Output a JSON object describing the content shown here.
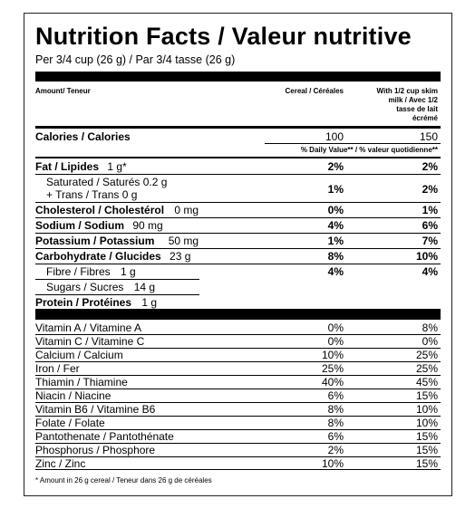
{
  "title": "Nutrition Facts / Valeur nutritive",
  "serving": "Per 3/4 cup (26 g)  / Par 3/4 tasse (26 g)",
  "header": {
    "amount": "Amount/ Teneur",
    "col1": "Cereal / Céréales",
    "col2_line1": "With 1/2 cup skim",
    "col2_line2": "milk  / Avec 1/2",
    "col2_line3": "tasse de lait",
    "col2_line4": "écrémé"
  },
  "calories": {
    "label": "Calories / Calories",
    "col1": "100",
    "col2": "150"
  },
  "daily_value_header": "% Daily Value** / % valeur quotidienne**",
  "nutrients": {
    "fat": {
      "label": "Fat / Lipides",
      "amount": "1 g*",
      "col1": "2%",
      "col2": "2%"
    },
    "saturated": {
      "label": "Saturated / Saturés",
      "amount": "0.2 g",
      "col1": "1%",
      "col2": "2%"
    },
    "trans": {
      "label": "+ Trans / Trans",
      "amount": "0 g"
    },
    "cholesterol": {
      "label": "Cholesterol / Cholestérol",
      "amount": "0 mg",
      "col1": "0%",
      "col2": "1%"
    },
    "sodium": {
      "label": "Sodium / Sodium",
      "amount": "90 mg",
      "col1": "4%",
      "col2": "6%"
    },
    "potassium": {
      "label": "Potassium / Potassium",
      "amount": "50 mg",
      "col1": "1%",
      "col2": "7%"
    },
    "carbohydrate": {
      "label": "Carbohydrate / Glucides",
      "amount": "23 g",
      "col1": "8%",
      "col2": "10%"
    },
    "fibre": {
      "label": "Fibre / Fibres",
      "amount": "1 g",
      "col1": "4%",
      "col2": "4%"
    },
    "sugars": {
      "label": "Sugars / Sucres",
      "amount": "14 g"
    },
    "protein": {
      "label": "Protein / Protéines",
      "amount": "1 g"
    }
  },
  "vitamins": [
    {
      "label": "Vitamin A / Vitamine A",
      "col1": "0%",
      "col2": "8%"
    },
    {
      "label": "Vitamin C / Vitamine C",
      "col1": "0%",
      "col2": "0%"
    },
    {
      "label": "Calcium / Calcium",
      "col1": "10%",
      "col2": "25%"
    },
    {
      "label": "Iron / Fer",
      "col1": "25%",
      "col2": "25%"
    },
    {
      "label": "Thiamin / Thiamine",
      "col1": "40%",
      "col2": "45%"
    },
    {
      "label": "Niacin / Niacine",
      "col1": "6%",
      "col2": "15%"
    },
    {
      "label": "Vitamin B6 / Vitamine B6",
      "col1": "8%",
      "col2": "10%"
    },
    {
      "label": "Folate / Folate",
      "col1": "8%",
      "col2": "10%"
    },
    {
      "label": "Pantothenate / Pantothénate",
      "col1": "6%",
      "col2": "15%"
    },
    {
      "label": "Phosphorus / Phosphore",
      "col1": "2%",
      "col2": "15%"
    },
    {
      "label": "Zinc / Zinc",
      "col1": "10%",
      "col2": "15%"
    }
  ],
  "footnote": "* Amount in 26 g cereal / Teneur dans 26 g de céréales"
}
